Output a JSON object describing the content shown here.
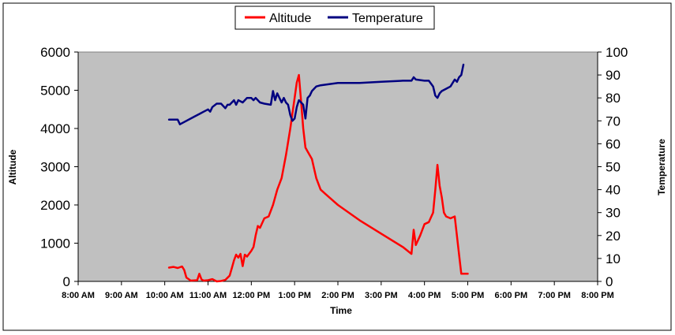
{
  "chart_data": {
    "type": "line",
    "xlabel": "Time",
    "ylabel_left": "Altitude",
    "ylabel_right": "Temperature",
    "x_ticks": [
      "8:00 AM",
      "9:00 AM",
      "10:00 AM",
      "11:00 AM",
      "12:00 PM",
      "1:00 PM",
      "2:00 PM",
      "3:00 PM",
      "4:00 PM",
      "5:00 PM",
      "6:00 PM",
      "7:00 PM",
      "8:00 PM"
    ],
    "x_range_hours": [
      8,
      20
    ],
    "y_left_range": [
      0,
      6000
    ],
    "y_left_ticks": [
      0,
      1000,
      2000,
      3000,
      4000,
      5000,
      6000
    ],
    "y_right_range": [
      0,
      100
    ],
    "y_right_ticks": [
      0,
      10,
      20,
      30,
      40,
      50,
      60,
      70,
      80,
      90,
      100
    ],
    "plot_background": "#c0c0c0",
    "legend_position": "top-center",
    "series": [
      {
        "name": "Altitude",
        "axis": "left",
        "color": "#ff0000",
        "x": [
          10.1,
          10.2,
          10.3,
          10.4,
          10.45,
          10.5,
          10.6,
          10.75,
          10.8,
          10.85,
          10.9,
          11.0,
          11.1,
          11.2,
          11.3,
          11.4,
          11.5,
          11.55,
          11.6,
          11.65,
          11.7,
          11.75,
          11.8,
          11.85,
          11.9,
          12.0,
          12.05,
          12.1,
          12.15,
          12.2,
          12.3,
          12.4,
          12.5,
          12.6,
          12.7,
          12.8,
          12.9,
          13.0,
          13.05,
          13.1,
          13.15,
          13.2,
          13.25,
          13.3,
          13.4,
          13.5,
          13.6,
          13.7,
          13.8,
          14.0,
          14.5,
          15.0,
          15.5,
          15.7,
          15.75,
          15.8,
          15.9,
          16.0,
          16.1,
          16.2,
          16.25,
          16.3,
          16.35,
          16.4,
          16.45,
          16.5,
          16.6,
          16.7,
          16.8,
          16.85,
          16.9,
          17.0
        ],
        "values": [
          360,
          380,
          350,
          390,
          300,
          100,
          20,
          30,
          200,
          50,
          20,
          30,
          60,
          0,
          10,
          40,
          150,
          350,
          550,
          700,
          620,
          720,
          400,
          700,
          650,
          800,
          900,
          1200,
          1450,
          1400,
          1650,
          1700,
          2000,
          2400,
          2700,
          3300,
          4000,
          4800,
          5200,
          5400,
          4700,
          4000,
          3500,
          3400,
          3200,
          2700,
          2400,
          2300,
          2200,
          2000,
          1600,
          1250,
          900,
          720,
          1350,
          950,
          1200,
          1500,
          1550,
          1800,
          2400,
          3050,
          2500,
          2200,
          1800,
          1700,
          1650,
          1700,
          700,
          200,
          200,
          200
        ]
      },
      {
        "name": "Temperature",
        "axis": "right",
        "color": "#000080",
        "x": [
          10.1,
          10.3,
          10.35,
          10.5,
          10.6,
          10.7,
          10.8,
          10.9,
          11.0,
          11.05,
          11.1,
          11.2,
          11.3,
          11.4,
          11.45,
          11.5,
          11.6,
          11.65,
          11.7,
          11.8,
          11.9,
          12.0,
          12.05,
          12.1,
          12.2,
          12.3,
          12.45,
          12.5,
          12.55,
          12.6,
          12.7,
          12.75,
          12.8,
          12.85,
          12.9,
          12.95,
          13.0,
          13.05,
          13.1,
          13.15,
          13.2,
          13.25,
          13.3,
          13.35,
          13.4,
          13.5,
          13.6,
          13.8,
          14.0,
          14.5,
          15.0,
          15.5,
          15.7,
          15.75,
          15.8,
          16.0,
          16.1,
          16.2,
          16.25,
          16.3,
          16.35,
          16.4,
          16.5,
          16.6,
          16.7,
          16.75,
          16.8,
          16.85,
          16.9
        ],
        "values": [
          70.5,
          70.5,
          68.5,
          70,
          71,
          72,
          73,
          74,
          75,
          74,
          76,
          77.5,
          77.5,
          75.5,
          77,
          77,
          79,
          77,
          79,
          78,
          80,
          80,
          79,
          80,
          78,
          77.5,
          77,
          83,
          79,
          82,
          78,
          80,
          78,
          77,
          72.5,
          70,
          71,
          76,
          79,
          78,
          77,
          71,
          80,
          81,
          83,
          85,
          85.5,
          86,
          86.5,
          86.5,
          87,
          87.5,
          87.5,
          89,
          88,
          87.5,
          87.5,
          85,
          81,
          80,
          82,
          83,
          84,
          85,
          88,
          87,
          89,
          90,
          94.5
        ]
      }
    ]
  }
}
